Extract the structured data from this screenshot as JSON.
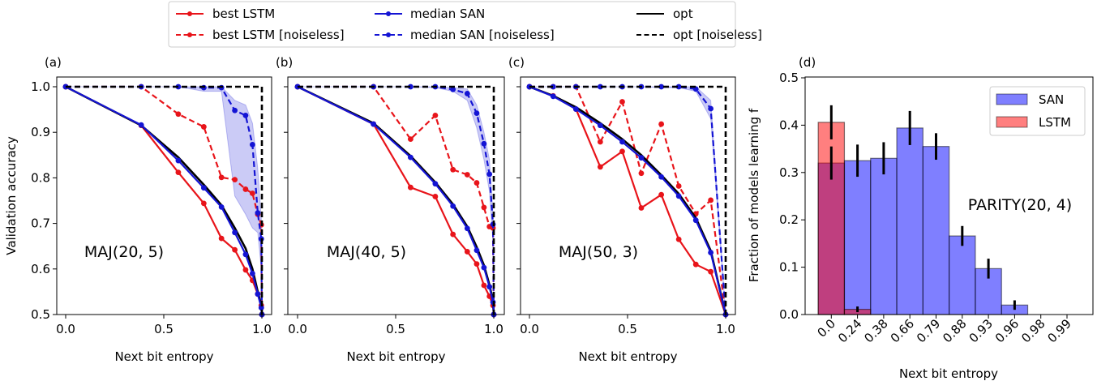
{
  "legend": {
    "entries": [
      {
        "label": "best LSTM",
        "color": "#e8141a",
        "dashed": false
      },
      {
        "label": "best LSTM [noiseless]",
        "color": "#e8141a",
        "dashed": true
      },
      {
        "label": "median SAN",
        "color": "#1414d4",
        "dashed": false
      },
      {
        "label": "median SAN [noiseless]",
        "color": "#1414d4",
        "dashed": true
      },
      {
        "label": "opt",
        "color": "#000000",
        "dashed": false
      },
      {
        "label": "opt [noiseless]",
        "color": "#000000",
        "dashed": true
      }
    ]
  },
  "chart_data": [
    {
      "type": "line",
      "panel_label": "(a)",
      "annotation": "MAJ(20, 5)",
      "xlabel": "Next bit entropy",
      "ylabel": "Validation accuracy",
      "xlim": [
        -0.05,
        1.03
      ],
      "ylim": [
        0.5,
        1.0
      ],
      "xticks": [
        "0.0",
        "0.5",
        "1.0"
      ],
      "yticks": [
        "0.5",
        "0.6",
        "0.7",
        "0.8",
        "0.9",
        "1.0"
      ],
      "x": [
        0,
        0.385,
        0.574,
        0.704,
        0.794,
        0.862,
        0.917,
        0.952,
        0.979,
        0.997,
        1.0
      ],
      "series": [
        {
          "name": "best LSTM",
          "values": [
            1.0,
            0.915,
            0.812,
            0.744,
            0.667,
            0.642,
            0.598,
            0.575,
            0.545,
            0.52,
            0.5
          ]
        },
        {
          "name": "best LSTM [noiseless]",
          "values": [
            1.0,
            1.0,
            0.94,
            0.912,
            0.801,
            0.796,
            0.775,
            0.766,
            0.72,
            0.697,
            0.5
          ]
        },
        {
          "name": "median SAN",
          "values": [
            1.0,
            0.916,
            0.838,
            0.778,
            0.736,
            0.68,
            0.632,
            0.59,
            0.545,
            0.515,
            0.5
          ]
        },
        {
          "name": "median SAN [noiseless]",
          "values": [
            1.0,
            1.0,
            1.0,
            0.998,
            0.998,
            0.948,
            0.937,
            0.873,
            0.723,
            0.666,
            0.5
          ],
          "band_low": [
            1.0,
            1.0,
            1.0,
            0.99,
            0.99,
            0.76,
            0.72,
            0.69,
            0.68,
            0.6,
            0.5
          ],
          "band_high": [
            1.0,
            1.0,
            1.0,
            1.0,
            1.0,
            0.97,
            0.96,
            0.92,
            0.82,
            0.71,
            0.5
          ]
        },
        {
          "name": "opt",
          "values": [
            1.0,
            0.915,
            0.845,
            0.785,
            0.74,
            0.69,
            0.645,
            0.6,
            0.55,
            0.52,
            0.5
          ]
        },
        {
          "name": "opt [noiseless]",
          "x": [
            0,
            1,
            1
          ],
          "values": [
            1.0,
            1.0,
            0.5
          ]
        }
      ]
    },
    {
      "type": "line",
      "panel_label": "(b)",
      "annotation": "MAJ(40, 5)",
      "xlabel": "Next bit entropy",
      "xlim": [
        -0.05,
        1.03
      ],
      "ylim": [
        0.5,
        1.0
      ],
      "xticks": [
        "0.0",
        "0.5",
        "1.0"
      ],
      "x": [
        0,
        0.387,
        0.576,
        0.702,
        0.792,
        0.865,
        0.913,
        0.95,
        0.978,
        0.996,
        1.0
      ],
      "series": [
        {
          "name": "best LSTM",
          "values": [
            1.0,
            0.918,
            0.779,
            0.759,
            0.676,
            0.638,
            0.611,
            0.564,
            0.54,
            0.52,
            0.5
          ]
        },
        {
          "name": "best LSTM [noiseless]",
          "values": [
            1.0,
            1.0,
            0.885,
            0.937,
            0.818,
            0.807,
            0.789,
            0.735,
            0.693,
            0.69,
            0.5
          ]
        },
        {
          "name": "median SAN",
          "values": [
            1.0,
            0.918,
            0.845,
            0.787,
            0.738,
            0.689,
            0.641,
            0.603,
            0.561,
            0.527,
            0.5
          ]
        },
        {
          "name": "median SAN [noiseless]",
          "values": [
            1.0,
            1.0,
            1.0,
            1.0,
            0.994,
            0.985,
            0.942,
            0.875,
            0.808,
            0.698,
            0.5
          ],
          "band_low": [
            1.0,
            1.0,
            1.0,
            0.998,
            0.99,
            0.97,
            0.91,
            0.84,
            0.77,
            0.66,
            0.5
          ],
          "band_high": [
            1.0,
            1.0,
            1.0,
            1.0,
            0.998,
            0.995,
            0.96,
            0.9,
            0.84,
            0.72,
            0.5
          ]
        },
        {
          "name": "opt",
          "values": [
            1.0,
            0.92,
            0.848,
            0.79,
            0.742,
            0.693,
            0.648,
            0.608,
            0.565,
            0.53,
            0.5
          ]
        },
        {
          "name": "opt [noiseless]",
          "x": [
            0,
            1,
            1
          ],
          "values": [
            1.0,
            1.0,
            0.5
          ]
        }
      ]
    },
    {
      "type": "line",
      "panel_label": "(c)",
      "annotation": "MAJ(50, 3)",
      "xlabel": "Next bit entropy",
      "xlim": [
        -0.05,
        1.03
      ],
      "ylim": [
        0.5,
        1.0
      ],
      "xticks": [
        "0.0",
        "0.5",
        "1.0"
      ],
      "x": [
        0,
        0.121,
        0.237,
        0.361,
        0.473,
        0.57,
        0.672,
        0.761,
        0.848,
        0.924,
        1.0
      ],
      "series": [
        {
          "name": "best LSTM",
          "values": [
            1.0,
            0.98,
            0.951,
            0.824,
            0.858,
            0.734,
            0.763,
            0.665,
            0.61,
            0.594,
            0.5
          ]
        },
        {
          "name": "best LSTM [noiseless]",
          "values": [
            1.0,
            1.0,
            1.0,
            0.879,
            0.967,
            0.81,
            0.918,
            0.782,
            0.721,
            0.751,
            0.5
          ]
        },
        {
          "name": "median SAN",
          "values": [
            1.0,
            0.979,
            0.951,
            0.915,
            0.879,
            0.844,
            0.802,
            0.76,
            0.707,
            0.636,
            0.5
          ]
        },
        {
          "name": "median SAN [noiseless]",
          "values": [
            1.0,
            1.0,
            1.0,
            1.0,
            1.0,
            1.0,
            1.0,
            1.0,
            0.995,
            0.952,
            0.5
          ],
          "band_low": [
            1.0,
            1.0,
            1.0,
            1.0,
            1.0,
            1.0,
            0.998,
            0.998,
            0.99,
            0.93,
            0.5
          ],
          "band_high": [
            1.0,
            1.0,
            1.0,
            1.0,
            1.0,
            1.0,
            1.0,
            1.0,
            1.0,
            0.97,
            0.5
          ]
        },
        {
          "name": "opt",
          "values": [
            1.0,
            0.98,
            0.955,
            0.92,
            0.885,
            0.85,
            0.806,
            0.765,
            0.712,
            0.64,
            0.5
          ]
        },
        {
          "name": "opt [noiseless]",
          "x": [
            0,
            1,
            1
          ],
          "values": [
            1.0,
            1.0,
            0.5
          ]
        }
      ]
    },
    {
      "type": "bar",
      "panel_label": "(d)",
      "annotation": "PARITY(20, 4)",
      "xlabel": "Next bit entropy",
      "ylabel": "Fraction of models learning f",
      "ylim": [
        0,
        0.5
      ],
      "yticks": [
        "0.0",
        "0.1",
        "0.2",
        "0.3",
        "0.4",
        "0.5"
      ],
      "categories": [
        "0.0",
        "0.24",
        "0.38",
        "0.66",
        "0.79",
        "0.88",
        "0.93",
        "0.96",
        "0.98",
        "0.99"
      ],
      "legend_placement": "top-right",
      "series": [
        {
          "name": "SAN",
          "color": "#7f7fff",
          "values": [
            0.32,
            0.325,
            0.33,
            0.394,
            0.355,
            0.166,
            0.097,
            0.02,
            0.0,
            0.0
          ],
          "errors": [
            0.035,
            0.034,
            0.034,
            0.036,
            0.028,
            0.021,
            0.021,
            0.01,
            0,
            0
          ]
        },
        {
          "name": "LSTM",
          "color": "#ff7f7f",
          "values": [
            0.406,
            0.011,
            0,
            0,
            0,
            0,
            0,
            0,
            0,
            0
          ],
          "errors": [
            0.036,
            0.006,
            0,
            0,
            0,
            0,
            0,
            0,
            0,
            0
          ]
        }
      ]
    }
  ]
}
